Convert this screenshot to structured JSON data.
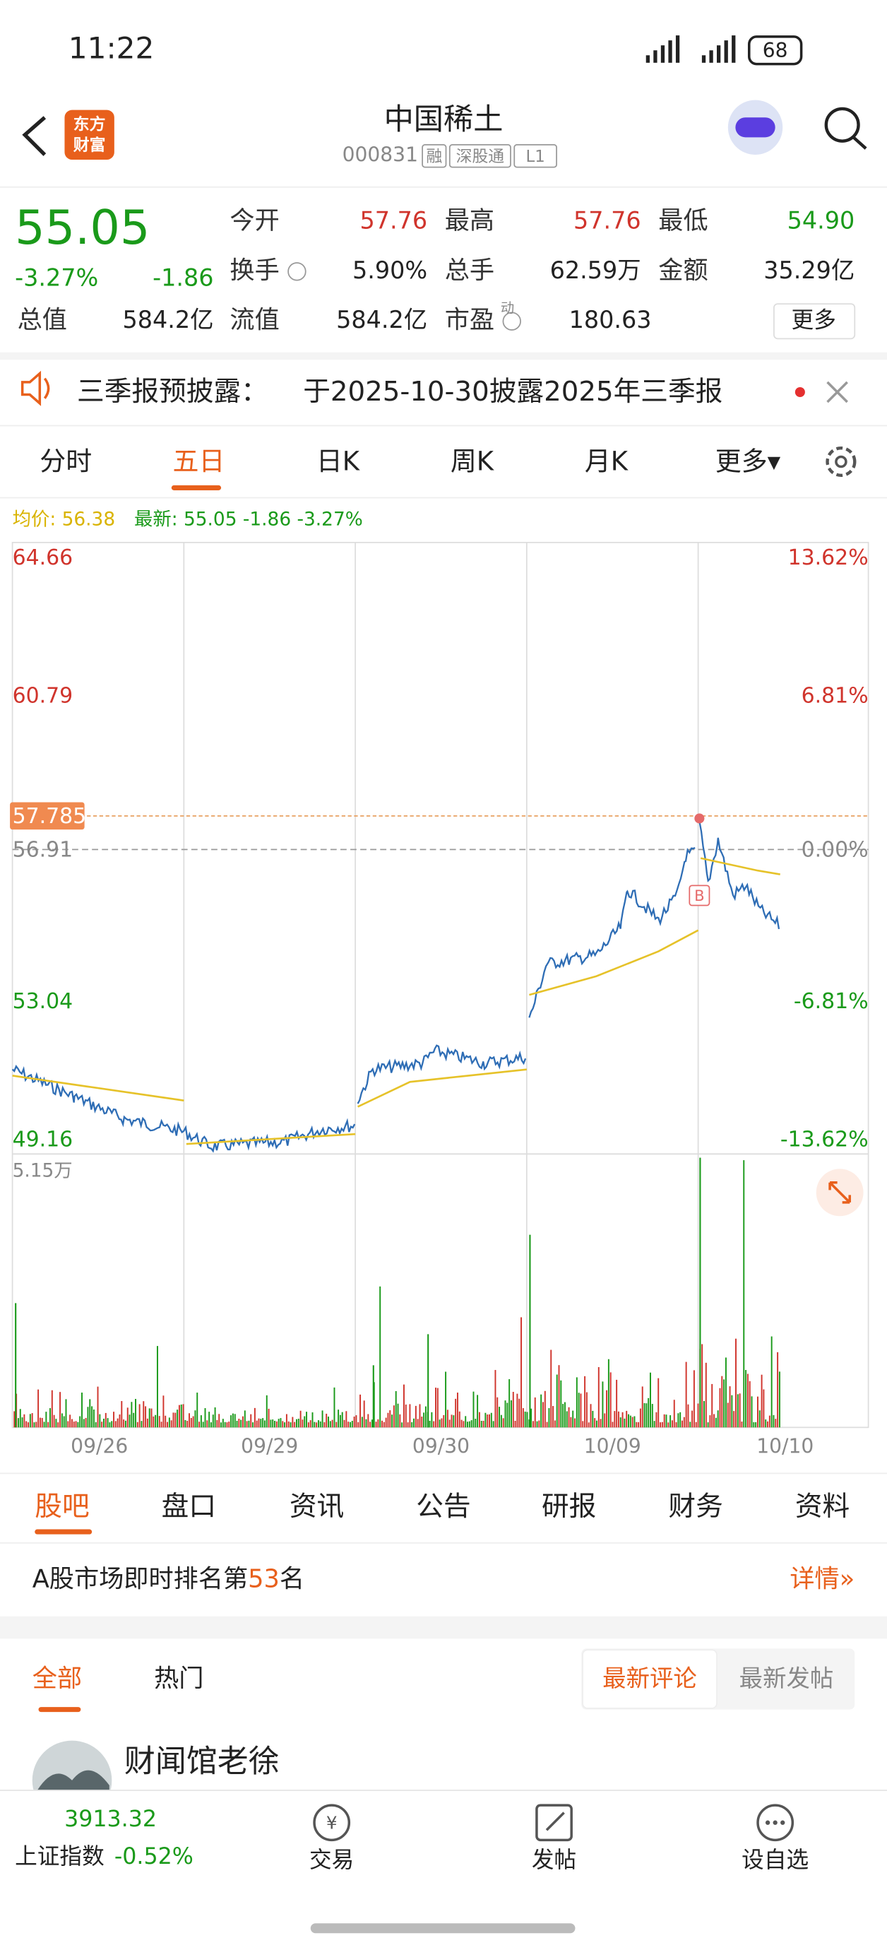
{
  "status": {
    "time": "11:22",
    "battery": "68"
  },
  "header": {
    "logo_line1": "东方",
    "logo_line2": "财富",
    "title": "中国稀土",
    "code": "000831",
    "tags": [
      "融",
      "深股通",
      "L1"
    ]
  },
  "quote": {
    "price": "55.05",
    "change_pct": "-3.27%",
    "change": "-1.86",
    "fields": [
      {
        "label": "今开",
        "value": "57.76"
      },
      {
        "label": "最高",
        "value": "57.76"
      },
      {
        "label": "最低",
        "value": "54.90"
      },
      {
        "label": "换手",
        "value": "5.90%"
      },
      {
        "label": "总手",
        "value": "62.59万"
      },
      {
        "label": "金额",
        "value": "35.29亿"
      },
      {
        "label": "总值",
        "value": "584.2亿"
      },
      {
        "label": "流值",
        "value": "584.2亿"
      },
      {
        "label": "市盈",
        "value": "180.63"
      }
    ],
    "pe_sup": "动",
    "more": "更多"
  },
  "notice": {
    "title": "三季报预披露：",
    "text": "于2025-10-30披露2025年三季报"
  },
  "chart_tabs": [
    "分时",
    "五日",
    "日K",
    "周K",
    "月K",
    "更多▾"
  ],
  "legend": {
    "avg": "均价: 56.38",
    "latest": "最新: 55.05 -1.86 -3.27%"
  },
  "chart": {
    "left_labels": [
      "64.66",
      "60.79",
      "57.785",
      "56.91",
      "53.04",
      "49.16"
    ],
    "right_labels": [
      "13.62%",
      "6.81%",
      "0.00%",
      "-6.81%",
      "-13.62%"
    ],
    "volume_max": "5.15万",
    "marker": "B",
    "dates": [
      "09/26",
      "09/29",
      "09/30",
      "10/09",
      "10/10"
    ]
  },
  "section_tabs": [
    "股吧",
    "盘口",
    "资讯",
    "公告",
    "研报",
    "财务",
    "资料"
  ],
  "rank": {
    "prefix": "A股市场即时排名第",
    "number": "53",
    "suffix": "名",
    "detail": "详情»"
  },
  "filters": {
    "tabs": [
      "全部",
      "热门"
    ],
    "buttons": [
      "最新评论",
      "最新发帖"
    ]
  },
  "post": {
    "user": "财闻馆老徐"
  },
  "bottom_nav": {
    "index_value": "3913.32",
    "index_name": "上证指数",
    "index_change": "-0.52%",
    "items": [
      "交易",
      "发帖",
      "设自选"
    ]
  }
}
